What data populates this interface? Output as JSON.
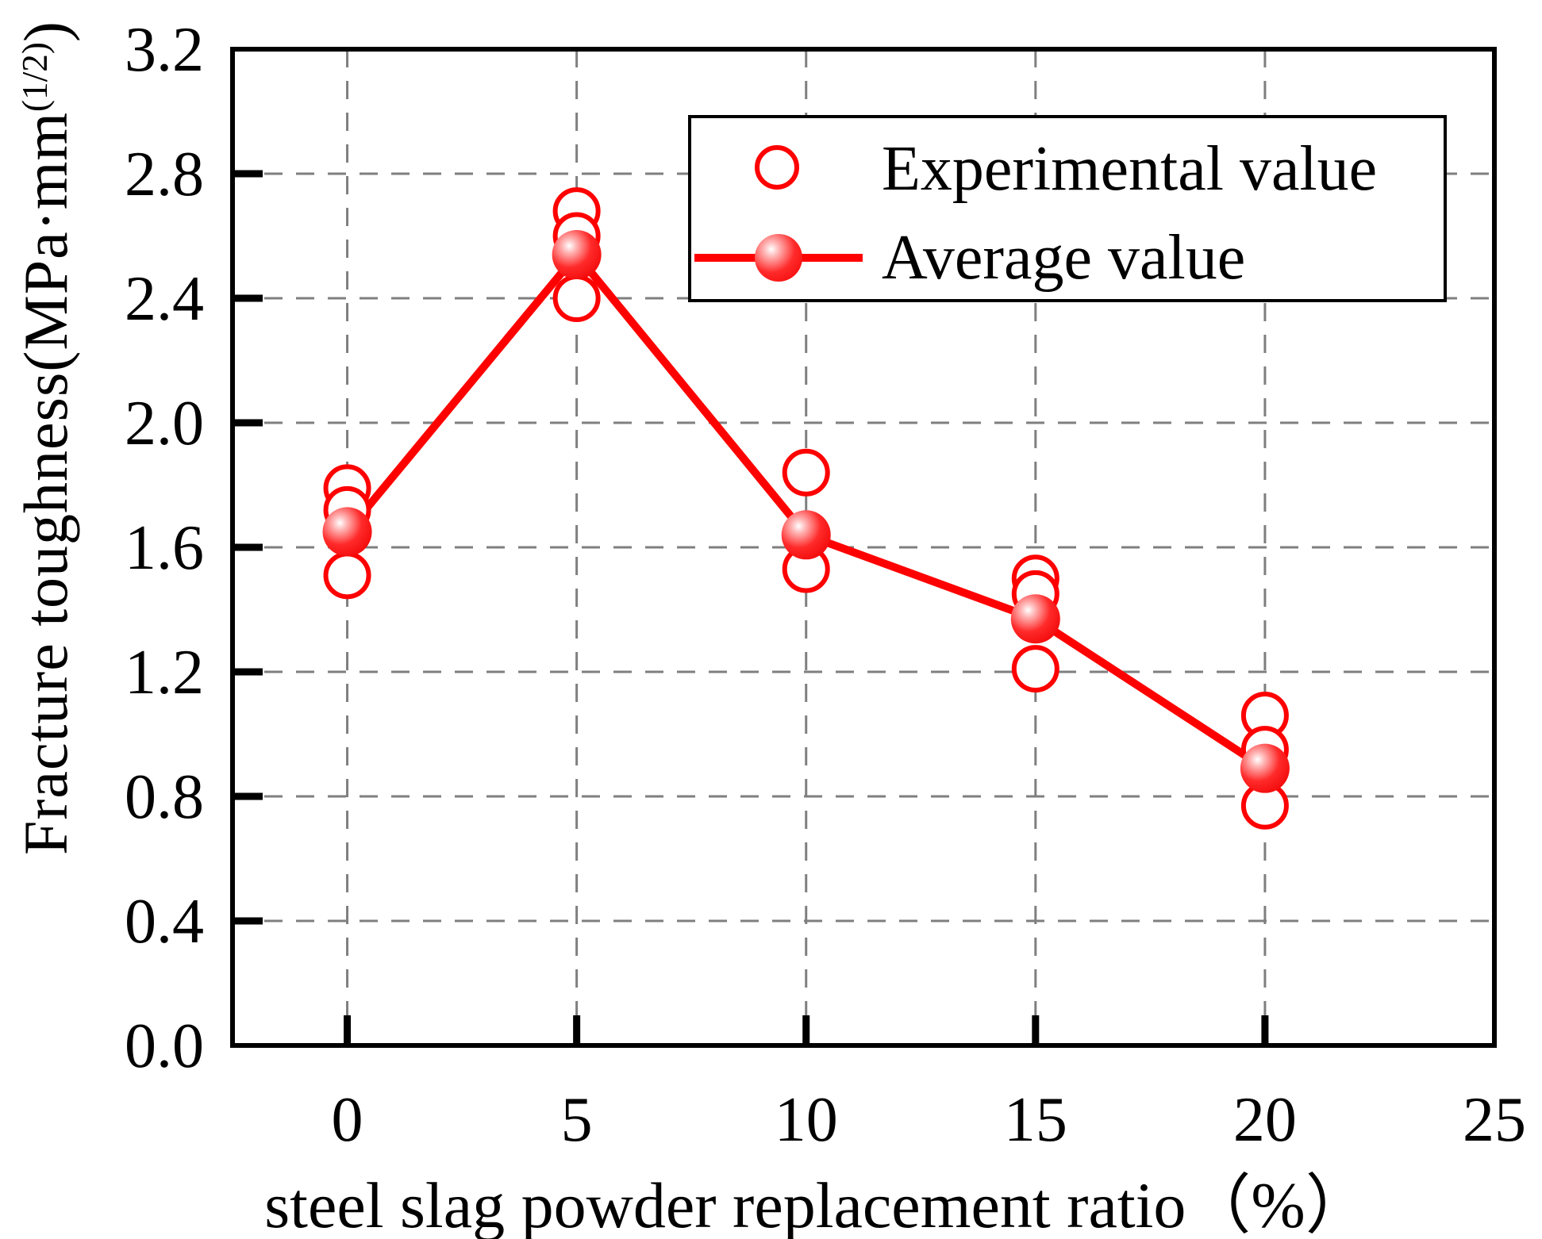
{
  "figure": {
    "background": "#ffffff"
  },
  "colors": {
    "series_red": "#ff0000",
    "grid_gray": "#7f7f7f",
    "axis_black": "#000000",
    "marker_fill_white": "#ffffff"
  },
  "axes": {
    "xlabel": "steel slag powder replacement ratio（%）",
    "ylabel_main": "Fracture toughness(MPa·mm",
    "ylabel_sup": "(1/2)",
    "ylabel_close": ")",
    "x_tick_labels": [
      "0",
      "5",
      "10",
      "15",
      "20",
      "25"
    ],
    "y_tick_labels": [
      "0.0",
      "0.4",
      "0.8",
      "1.2",
      "1.6",
      "2.0",
      "2.4",
      "2.8",
      "3.2"
    ]
  },
  "legend": {
    "items": [
      {
        "label": "Experimental value",
        "marker": "open-circle"
      },
      {
        "label": "Average value",
        "marker": "filled-ball-on-line"
      }
    ],
    "position": "upper-right"
  },
  "chart_data": {
    "type": "scatter",
    "title": "",
    "xlabel": "steel slag powder replacement ratio（%）",
    "ylabel": "Fracture toughness(MPa·mm^(1/2))",
    "xlim": [
      -2.5,
      25
    ],
    "ylim": [
      0,
      3.2
    ],
    "xticks": [
      0,
      5,
      10,
      15,
      20,
      25
    ],
    "yticks": [
      0,
      0.4,
      0.8,
      1.2,
      1.6,
      2.0,
      2.4,
      2.8,
      3.2
    ],
    "grid": true,
    "grid_style": "dashed",
    "legend_position": "upper right",
    "series": [
      {
        "name": "Experimental value",
        "type": "scatter",
        "marker": "open-circle",
        "color": "#ff0000",
        "x": [
          0,
          0,
          0,
          5,
          5,
          5,
          10,
          10,
          10,
          15,
          15,
          15,
          20,
          20,
          20
        ],
        "y": [
          1.79,
          1.72,
          1.51,
          2.68,
          2.6,
          2.4,
          1.84,
          1.64,
          1.53,
          1.5,
          1.45,
          1.21,
          1.06,
          0.95,
          0.77
        ]
      },
      {
        "name": "Average value",
        "type": "line+marker",
        "marker": "filled-ball",
        "color": "#ff0000",
        "x": [
          0,
          5,
          10,
          15,
          20
        ],
        "y": [
          1.65,
          2.54,
          1.64,
          1.37,
          0.89
        ]
      }
    ]
  }
}
